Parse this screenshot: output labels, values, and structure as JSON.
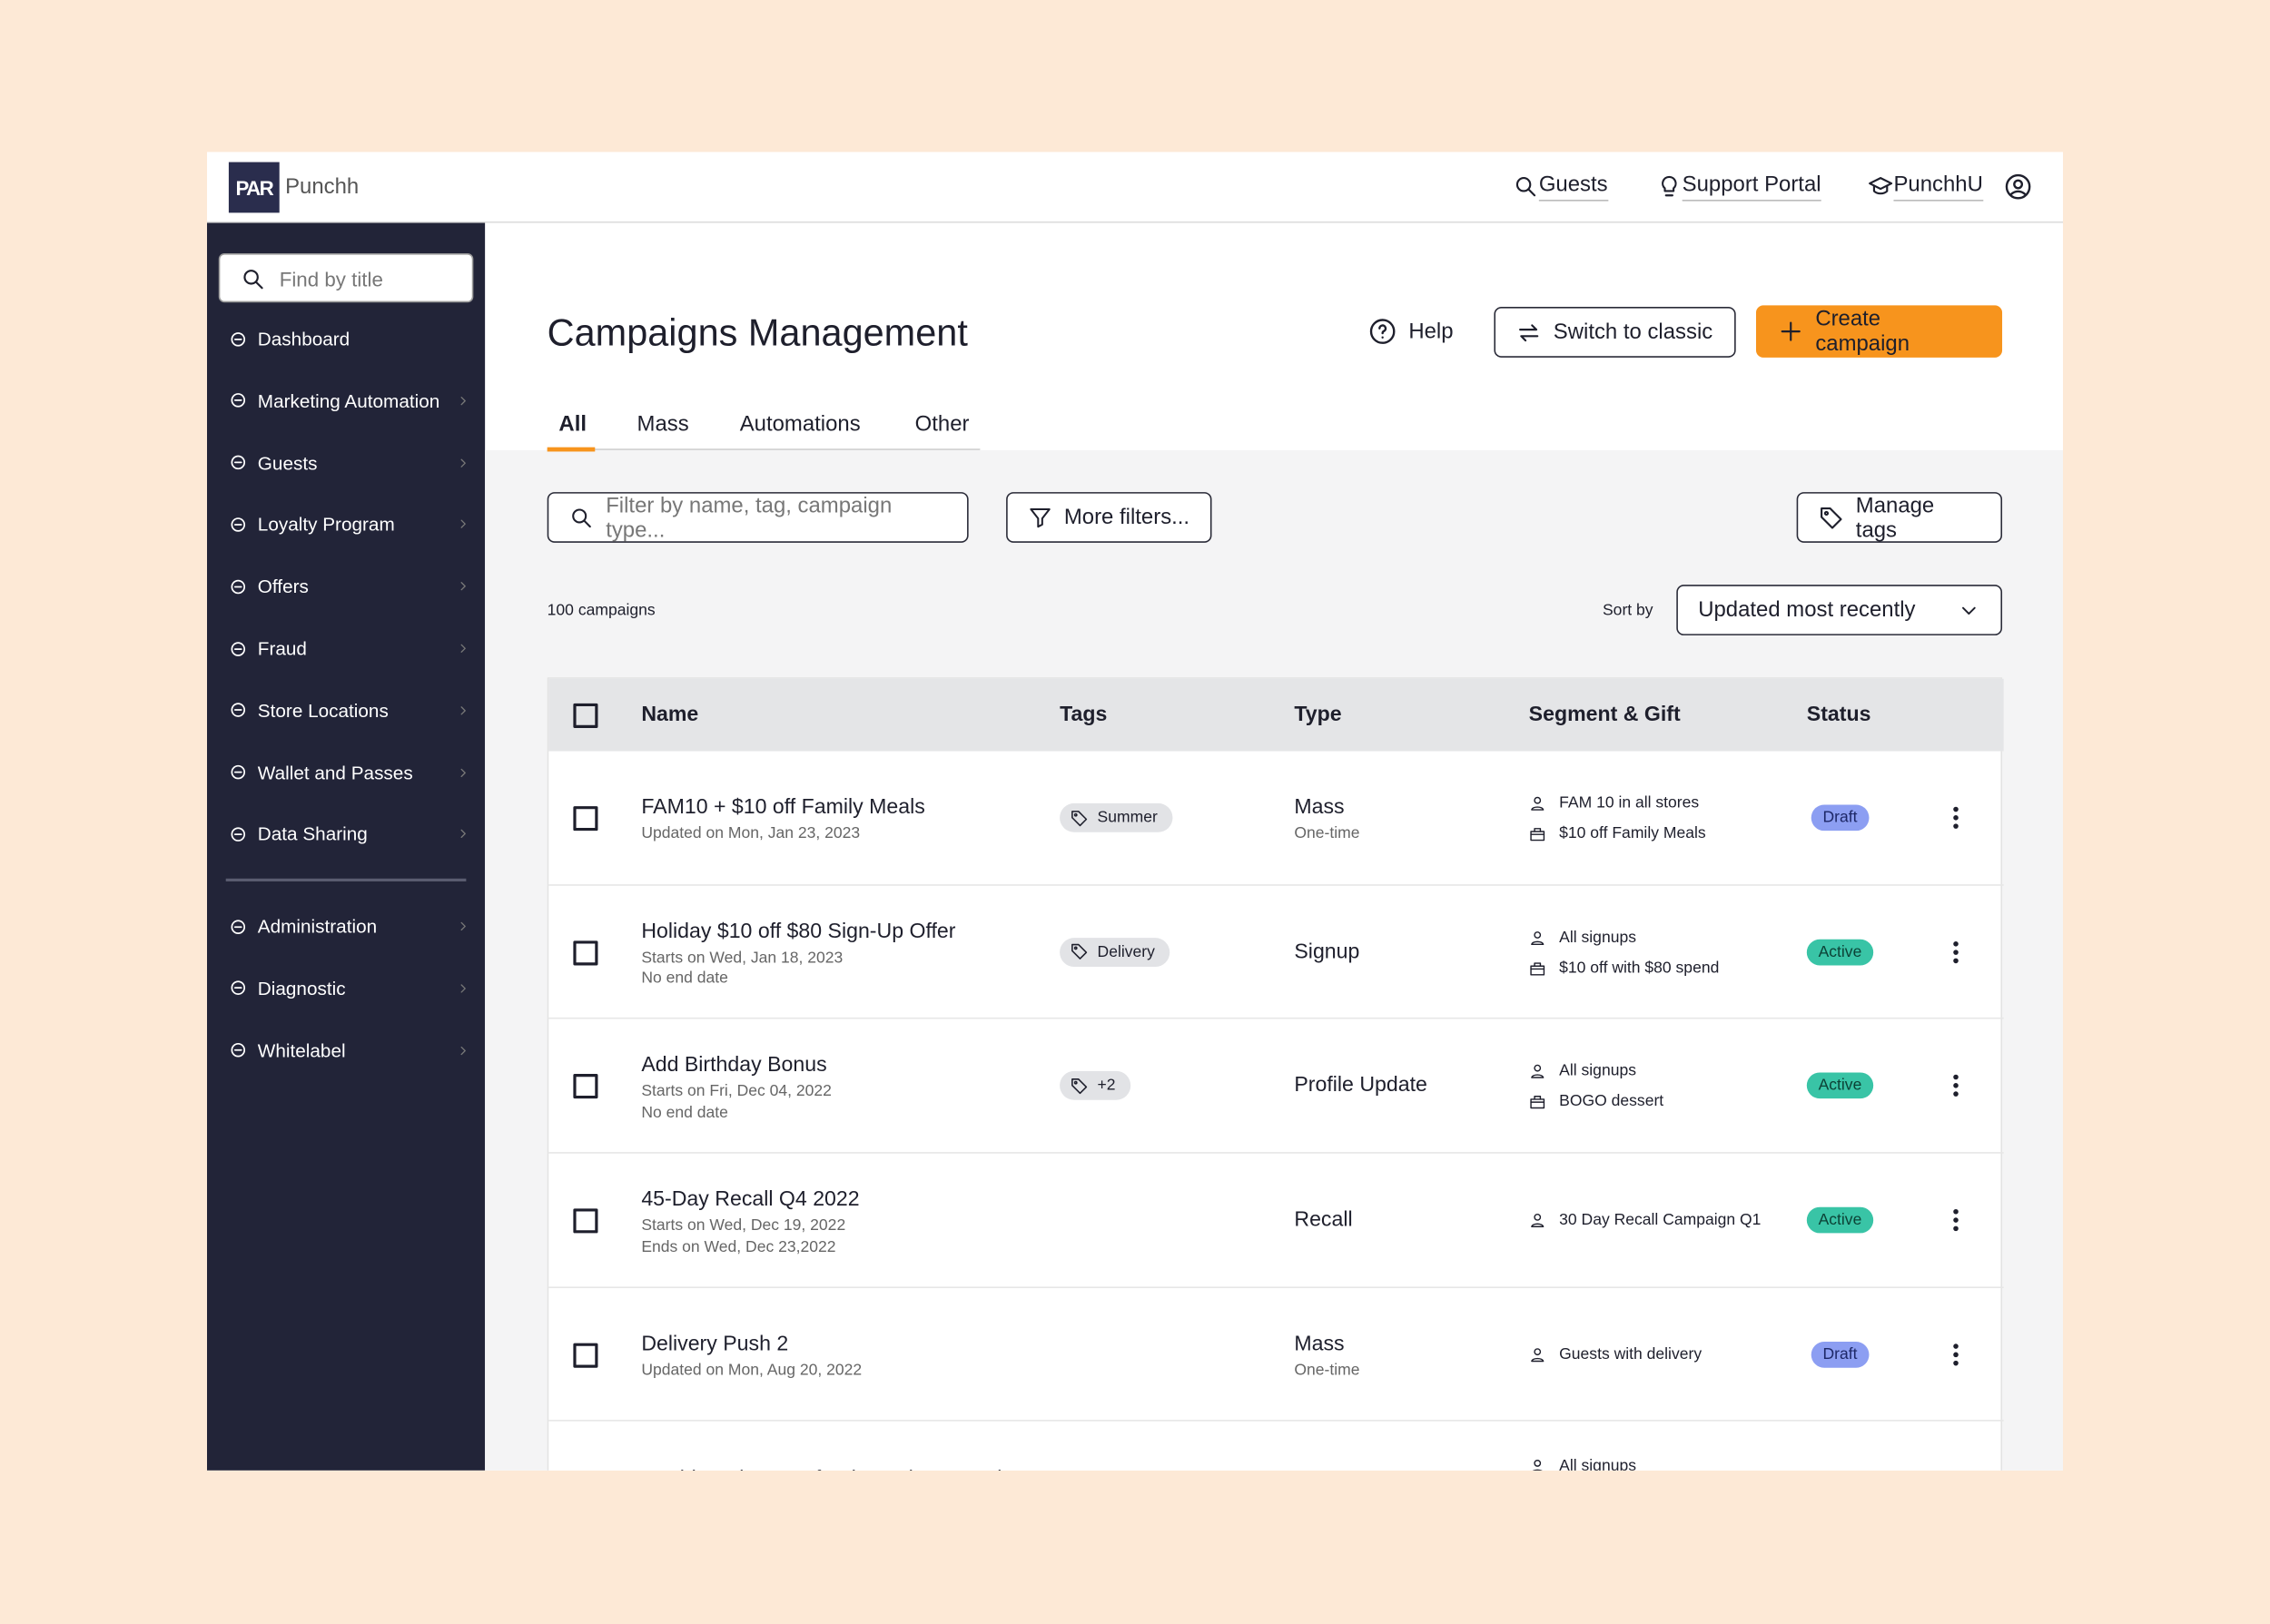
{
  "header": {
    "logo_mark": "PAR",
    "logo_text": "Punchh",
    "nav": [
      "Guests",
      "Support Portal",
      "PunchhU"
    ]
  },
  "sidebar": {
    "search_placeholder": "Find by title",
    "items": [
      "Dashboard",
      "Marketing Automation",
      "Guests",
      "Loyalty Program",
      "Offers",
      "Fraud",
      "Store Locations",
      "Wallet and Passes",
      "Data Sharing"
    ],
    "bottom_items": [
      "Administration",
      "Diagnostic",
      "Whitelabel"
    ]
  },
  "page": {
    "title": "Campaigns Management",
    "help": "Help",
    "switch": "Switch to classic",
    "create": "Create campaign",
    "tabs": [
      "All",
      "Mass",
      "Automations",
      "Other"
    ],
    "filter_placeholder": "Filter by name, tag, campaign type...",
    "more_filters": "More filters...",
    "manage_tags": "Manage tags",
    "count": "100 campaigns",
    "sort_label": "Sort by",
    "sort_value": "Updated most recently"
  },
  "table": {
    "columns": [
      "Name",
      "Tags",
      "Type",
      "Segment & Gift",
      "Status"
    ],
    "rows": [
      {
        "name": "FAM10 + $10 off Family Meals",
        "dates": [
          "Updated on Mon, Jan 23, 2023"
        ],
        "tag": "Summer",
        "type": "Mass",
        "type_sub": "One-time",
        "segment": "FAM 10 in all stores",
        "gift": "$10 off Family Meals",
        "status": "Draft"
      },
      {
        "name": "Holiday $10 off $80 Sign-Up Offer",
        "dates": [
          "Starts on Wed, Jan 18, 2023",
          "No end date"
        ],
        "tag": "Delivery",
        "type": "Signup",
        "segment": "All signups",
        "gift": "$10 off with $80 spend",
        "status": "Active"
      },
      {
        "name": "Add Birthday Bonus",
        "dates": [
          "Starts on Fri, Dec 04, 2022",
          "No end date"
        ],
        "tag": "+2",
        "type": "Profile Update",
        "segment": "All signups",
        "gift": "BOGO dessert",
        "status": "Active"
      },
      {
        "name": "45-Day Recall Q4 2022",
        "dates": [
          "Starts on Wed, Dec 19, 2022",
          "Ends on Wed, Dec 23,2022"
        ],
        "type": "Recall",
        "segment": "30 Day Recall Campaign Q1",
        "status": "Active"
      },
      {
        "name": "Delivery Push 2",
        "dates": [
          "Updated on Mon, Aug 20, 2022"
        ],
        "type": "Mass",
        "type_sub": "One-time",
        "segment": "Guests with delivery",
        "status": "Draft"
      },
      {
        "name": "Double Points Seafood Month Quarterly",
        "segment": "All signups"
      }
    ]
  }
}
